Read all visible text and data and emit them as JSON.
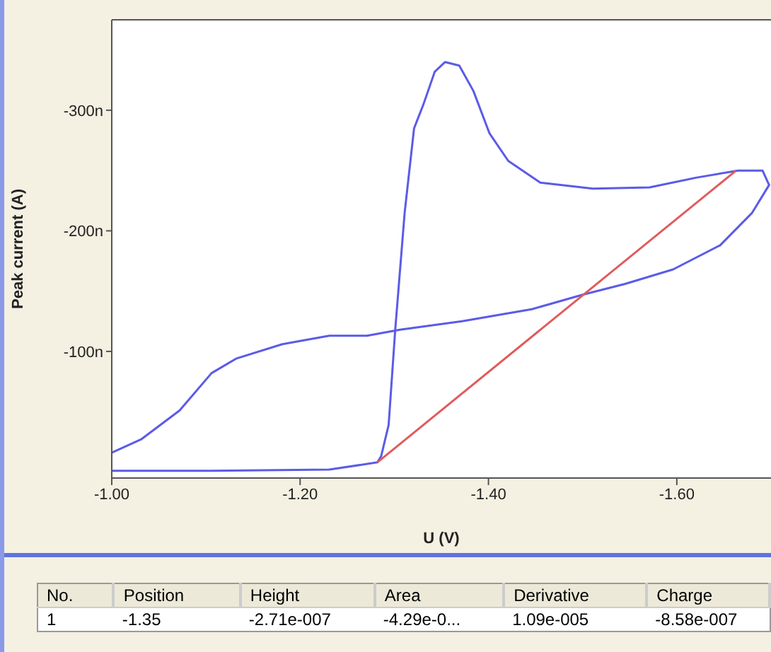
{
  "chart_data": {
    "type": "line",
    "xlabel": "U (V)",
    "ylabel": "Peak current (A)",
    "xlim": [
      -1.0,
      -1.7
    ],
    "xticks": [
      {
        "value": -1.0,
        "label": "-1.00"
      },
      {
        "value": -1.2,
        "label": "-1.20"
      },
      {
        "value": -1.4,
        "label": "-1.40"
      },
      {
        "value": -1.6,
        "label": "-1.60"
      }
    ],
    "ylim": [
      5,
      -375
    ],
    "yticks": [
      {
        "value": -100,
        "label": "-100n"
      },
      {
        "value": -200,
        "label": "-200n"
      },
      {
        "value": -300,
        "label": "-300n"
      }
    ],
    "marker": "none",
    "line_style": "solid",
    "series": [
      {
        "color": "#5b5be8",
        "x": [
          -1.0,
          -1.106,
          -1.231,
          -1.282,
          -1.286,
          -1.294,
          -1.301,
          -1.311,
          -1.321,
          -1.331,
          -1.343,
          -1.354,
          -1.369,
          -1.384,
          -1.401,
          -1.421,
          -1.455,
          -1.511,
          -1.571,
          -1.62,
          -1.665,
          -1.691,
          -1.698,
          -1.68,
          -1.646,
          -1.596,
          -1.545,
          -1.5,
          -1.446,
          -1.372,
          -1.306,
          -1.271,
          -1.231,
          -1.181,
          -1.132,
          -1.106,
          -1.072,
          -1.031,
          -1.0
        ],
        "values": [
          -1,
          -1,
          -2,
          -8,
          -13,
          -39,
          -118,
          -215,
          -285,
          -305,
          -332,
          -340,
          -337,
          -316,
          -281,
          -258,
          -240,
          -235,
          -236,
          -244,
          -250,
          -250,
          -238,
          -215,
          -188,
          -168,
          -156,
          -147,
          -135,
          -125,
          -118,
          -113,
          -113,
          -106,
          -94,
          -82,
          -51,
          -27,
          -16
        ]
      },
      {
        "color": "#e05a5a",
        "x": [
          -1.282,
          -1.663
        ],
        "values": [
          -8,
          -250
        ]
      }
    ],
    "annotations": [
      "No.",
      "Position",
      "Height",
      "Area",
      "Derivative",
      "Charge",
      "1",
      "-1.35",
      "-2.71e-007",
      "-4.29e-0...",
      "1.09e-005",
      "-8.58e-007"
    ]
  }
}
